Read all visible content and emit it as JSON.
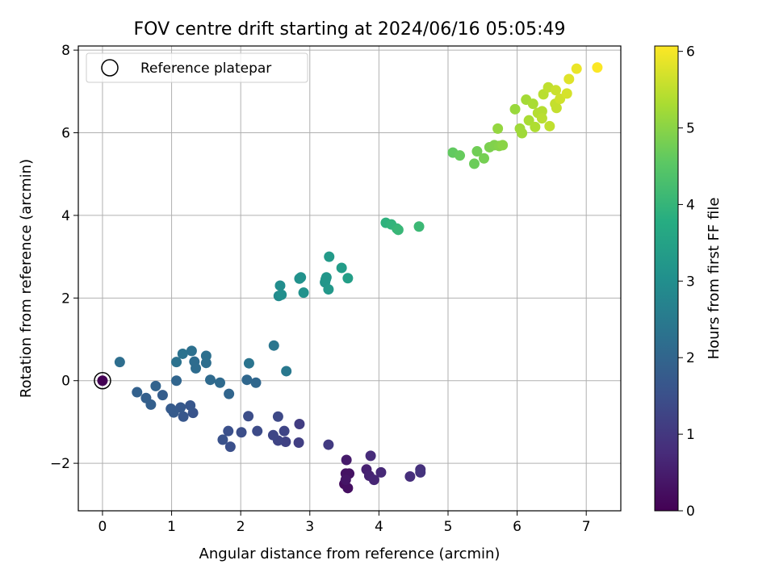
{
  "chart_data": {
    "type": "scatter",
    "title": "FOV centre drift starting at 2024/06/16 05:05:49",
    "xlabel": "Angular distance from reference (arcmin)",
    "ylabel": "Rotation from reference (arcmin)",
    "xlim": [
      -0.35,
      7.5
    ],
    "ylim": [
      -3.15,
      8.1
    ],
    "xticks": [
      0,
      1,
      2,
      3,
      4,
      5,
      6,
      7
    ],
    "yticks": [
      -2,
      0,
      2,
      4,
      6,
      8
    ],
    "xtick_labels": [
      "0",
      "1",
      "2",
      "3",
      "4",
      "5",
      "6",
      "7"
    ],
    "ytick_labels": [
      "−2",
      "0",
      "2",
      "4",
      "6",
      "8"
    ],
    "grid": true,
    "legend": {
      "position": "top-left",
      "entries": [
        "Reference platepar"
      ]
    },
    "reference_point": {
      "x": 0,
      "y": 0
    },
    "colorbar": {
      "label": "Hours from first FF file",
      "colormap": "viridis",
      "range": [
        0,
        6.07
      ],
      "ticks": [
        0,
        1,
        2,
        3,
        4,
        5,
        6
      ],
      "tick_labels": [
        "0",
        "1",
        "2",
        "3",
        "4",
        "5",
        "6"
      ]
    },
    "points": [
      {
        "x": 0.0,
        "y": 0.0,
        "c": 0.0
      },
      {
        "x": 3.5,
        "y": -2.5,
        "c": 0.2
      },
      {
        "x": 3.55,
        "y": -2.6,
        "c": 0.25
      },
      {
        "x": 3.52,
        "y": -2.25,
        "c": 0.3
      },
      {
        "x": 3.57,
        "y": -2.25,
        "c": 0.3
      },
      {
        "x": 3.52,
        "y": -2.4,
        "c": 0.35
      },
      {
        "x": 3.53,
        "y": -1.92,
        "c": 0.45
      },
      {
        "x": 3.82,
        "y": -2.15,
        "c": 0.55
      },
      {
        "x": 3.86,
        "y": -2.3,
        "c": 0.6
      },
      {
        "x": 3.93,
        "y": -2.4,
        "c": 0.65
      },
      {
        "x": 4.03,
        "y": -2.22,
        "c": 0.7
      },
      {
        "x": 3.88,
        "y": -1.82,
        "c": 0.75
      },
      {
        "x": 4.45,
        "y": -2.32,
        "c": 0.8
      },
      {
        "x": 4.6,
        "y": -2.15,
        "c": 0.85
      },
      {
        "x": 4.6,
        "y": -2.22,
        "c": 0.9
      },
      {
        "x": 3.27,
        "y": -1.55,
        "c": 1.05
      },
      {
        "x": 2.85,
        "y": -1.05,
        "c": 1.1
      },
      {
        "x": 2.84,
        "y": -1.5,
        "c": 1.15
      },
      {
        "x": 2.65,
        "y": -1.48,
        "c": 1.2
      },
      {
        "x": 2.63,
        "y": -1.22,
        "c": 1.25
      },
      {
        "x": 2.54,
        "y": -1.45,
        "c": 1.25
      },
      {
        "x": 2.47,
        "y": -1.32,
        "c": 1.3
      },
      {
        "x": 2.54,
        "y": -0.87,
        "c": 1.35
      },
      {
        "x": 2.24,
        "y": -1.22,
        "c": 1.4
      },
      {
        "x": 2.11,
        "y": -0.86,
        "c": 1.45
      },
      {
        "x": 2.01,
        "y": -1.25,
        "c": 1.45
      },
      {
        "x": 1.85,
        "y": -1.6,
        "c": 1.5
      },
      {
        "x": 1.82,
        "y": -1.22,
        "c": 1.5
      },
      {
        "x": 1.74,
        "y": -1.43,
        "c": 1.55
      },
      {
        "x": 1.31,
        "y": -0.78,
        "c": 1.6
      },
      {
        "x": 1.27,
        "y": -0.6,
        "c": 1.65
      },
      {
        "x": 1.17,
        "y": -0.87,
        "c": 1.65
      },
      {
        "x": 1.13,
        "y": -0.65,
        "c": 1.7
      },
      {
        "x": 1.03,
        "y": -0.77,
        "c": 1.75
      },
      {
        "x": 0.99,
        "y": -0.68,
        "c": 1.75
      },
      {
        "x": 0.87,
        "y": -0.35,
        "c": 1.8
      },
      {
        "x": 0.7,
        "y": -0.58,
        "c": 1.85
      },
      {
        "x": 0.63,
        "y": -0.42,
        "c": 1.85
      },
      {
        "x": 0.5,
        "y": -0.28,
        "c": 1.9
      },
      {
        "x": 0.77,
        "y": -0.13,
        "c": 1.95
      },
      {
        "x": 1.07,
        "y": 0.0,
        "c": 2.0
      },
      {
        "x": 1.83,
        "y": -0.32,
        "c": 2.0
      },
      {
        "x": 2.22,
        "y": -0.05,
        "c": 2.05
      },
      {
        "x": 2.09,
        "y": 0.02,
        "c": 2.05
      },
      {
        "x": 1.7,
        "y": -0.05,
        "c": 2.1
      },
      {
        "x": 1.56,
        "y": 0.02,
        "c": 2.1
      },
      {
        "x": 1.35,
        "y": 0.3,
        "c": 2.15
      },
      {
        "x": 1.33,
        "y": 0.46,
        "c": 2.15
      },
      {
        "x": 1.5,
        "y": 0.43,
        "c": 2.2
      },
      {
        "x": 1.5,
        "y": 0.6,
        "c": 2.25
      },
      {
        "x": 1.29,
        "y": 0.72,
        "c": 2.25
      },
      {
        "x": 1.16,
        "y": 0.65,
        "c": 2.3
      },
      {
        "x": 1.07,
        "y": 0.45,
        "c": 2.3
      },
      {
        "x": 0.25,
        "y": 0.45,
        "c": 2.2
      },
      {
        "x": 2.12,
        "y": 0.42,
        "c": 2.35
      },
      {
        "x": 2.48,
        "y": 0.85,
        "c": 2.4
      },
      {
        "x": 2.66,
        "y": 0.23,
        "c": 2.45
      },
      {
        "x": 2.55,
        "y": 2.05,
        "c": 2.9
      },
      {
        "x": 2.57,
        "y": 2.3,
        "c": 2.95
      },
      {
        "x": 2.59,
        "y": 2.08,
        "c": 3.0
      },
      {
        "x": 2.85,
        "y": 2.47,
        "c": 3.05
      },
      {
        "x": 2.87,
        "y": 2.5,
        "c": 3.1
      },
      {
        "x": 2.91,
        "y": 2.13,
        "c": 3.1
      },
      {
        "x": 3.22,
        "y": 2.38,
        "c": 3.15
      },
      {
        "x": 3.23,
        "y": 2.45,
        "c": 3.2
      },
      {
        "x": 3.24,
        "y": 2.5,
        "c": 3.2
      },
      {
        "x": 3.27,
        "y": 2.21,
        "c": 3.25
      },
      {
        "x": 3.28,
        "y": 3.0,
        "c": 3.3
      },
      {
        "x": 3.46,
        "y": 2.73,
        "c": 3.35
      },
      {
        "x": 3.55,
        "y": 2.48,
        "c": 3.4
      },
      {
        "x": 4.1,
        "y": 3.82,
        "c": 3.9
      },
      {
        "x": 4.18,
        "y": 3.78,
        "c": 3.95
      },
      {
        "x": 4.26,
        "y": 3.68,
        "c": 4.0
      },
      {
        "x": 4.28,
        "y": 3.65,
        "c": 4.05
      },
      {
        "x": 4.58,
        "y": 3.73,
        "c": 4.1
      },
      {
        "x": 5.07,
        "y": 5.52,
        "c": 4.6
      },
      {
        "x": 5.17,
        "y": 5.45,
        "c": 4.65
      },
      {
        "x": 5.38,
        "y": 5.25,
        "c": 4.7
      },
      {
        "x": 5.42,
        "y": 5.55,
        "c": 4.75
      },
      {
        "x": 5.52,
        "y": 5.38,
        "c": 4.8
      },
      {
        "x": 5.6,
        "y": 5.65,
        "c": 4.85
      },
      {
        "x": 5.67,
        "y": 5.7,
        "c": 4.9
      },
      {
        "x": 5.74,
        "y": 5.68,
        "c": 4.95
      },
      {
        "x": 5.79,
        "y": 5.7,
        "c": 5.0
      },
      {
        "x": 5.72,
        "y": 6.1,
        "c": 5.1
      },
      {
        "x": 5.97,
        "y": 6.57,
        "c": 5.15
      },
      {
        "x": 6.04,
        "y": 6.1,
        "c": 5.2
      },
      {
        "x": 6.07,
        "y": 5.99,
        "c": 5.2
      },
      {
        "x": 6.13,
        "y": 6.8,
        "c": 5.25
      },
      {
        "x": 6.17,
        "y": 6.3,
        "c": 5.3
      },
      {
        "x": 6.23,
        "y": 6.7,
        "c": 5.3
      },
      {
        "x": 6.26,
        "y": 6.14,
        "c": 5.35
      },
      {
        "x": 6.3,
        "y": 6.48,
        "c": 5.4
      },
      {
        "x": 6.36,
        "y": 6.52,
        "c": 5.4
      },
      {
        "x": 6.36,
        "y": 6.35,
        "c": 5.45
      },
      {
        "x": 6.38,
        "y": 6.93,
        "c": 5.45
      },
      {
        "x": 6.45,
        "y": 7.1,
        "c": 5.5
      },
      {
        "x": 6.47,
        "y": 6.16,
        "c": 5.5
      },
      {
        "x": 6.55,
        "y": 6.7,
        "c": 5.55
      },
      {
        "x": 6.57,
        "y": 6.6,
        "c": 5.55
      },
      {
        "x": 6.56,
        "y": 7.03,
        "c": 5.6
      },
      {
        "x": 6.62,
        "y": 6.82,
        "c": 5.65
      },
      {
        "x": 6.72,
        "y": 6.95,
        "c": 5.7
      },
      {
        "x": 6.75,
        "y": 7.3,
        "c": 5.8
      },
      {
        "x": 6.86,
        "y": 7.55,
        "c": 5.9
      },
      {
        "x": 7.16,
        "y": 7.58,
        "c": 6.05
      }
    ]
  }
}
